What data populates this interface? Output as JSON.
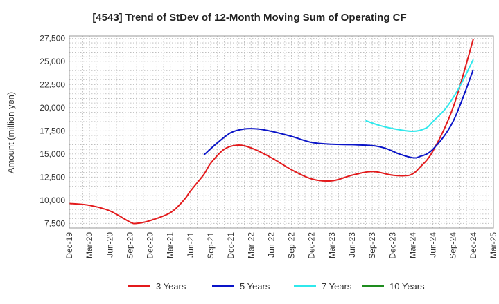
{
  "chart_data": {
    "type": "line",
    "title": "[4543]  Trend of StDev of 12-Month Moving Sum of Operating CF",
    "xlabel": "",
    "ylabel": "Amount (million yen)",
    "ylim": [
      7000,
      27750
    ],
    "yticks": [
      7500,
      10000,
      12500,
      15000,
      17500,
      20000,
      22500,
      25000,
      27500
    ],
    "ytick_labels": [
      "7,500",
      "10,000",
      "12,500",
      "15,000",
      "17,500",
      "20,000",
      "22,500",
      "25,000",
      "27,500"
    ],
    "x_categories": [
      "Dec-19",
      "Mar-20",
      "Jun-20",
      "Sep-20",
      "Dec-20",
      "Mar-21",
      "Jun-21",
      "Sep-21",
      "Dec-21",
      "Mar-22",
      "Jun-22",
      "Sep-22",
      "Dec-22",
      "Mar-23",
      "Jun-23",
      "Sep-23",
      "Dec-23",
      "Mar-24",
      "Jun-24",
      "Sep-24",
      "Dec-24",
      "Mar-25"
    ],
    "grid": true,
    "legend_position": "bottom",
    "series": [
      {
        "name": "3 Years",
        "color": "#e31a1c",
        "points": [
          [
            "Dec-19",
            9650
          ],
          [
            "Mar-20",
            9450
          ],
          [
            "Jun-20",
            8850
          ],
          [
            "Sep-20",
            7650
          ],
          [
            "Oct-20",
            7500
          ],
          [
            "Dec-20",
            7800
          ],
          [
            "Mar-21",
            8650
          ],
          [
            "May-21",
            10000
          ],
          [
            "Jun-21",
            11000
          ],
          [
            "Aug-21",
            12800
          ],
          [
            "Sep-21",
            14000
          ],
          [
            "Nov-21",
            15500
          ],
          [
            "Jan-22",
            15950
          ],
          [
            "Mar-22",
            15650
          ],
          [
            "Jun-22",
            14600
          ],
          [
            "Sep-22",
            13300
          ],
          [
            "Dec-22",
            12300
          ],
          [
            "Mar-23",
            12100
          ],
          [
            "Jun-23",
            12700
          ],
          [
            "Sep-23",
            13100
          ],
          [
            "Dec-23",
            12700
          ],
          [
            "Feb-24",
            12650
          ],
          [
            "Mar-24",
            12850
          ],
          [
            "Apr-24",
            13500
          ],
          [
            "Jun-24",
            15300
          ],
          [
            "Sep-24",
            20000
          ],
          [
            "Dec-24",
            27400
          ]
        ]
      },
      {
        "name": "5 Years",
        "color": "#0a14c8",
        "points": [
          [
            "Aug-21",
            14900
          ],
          [
            "Oct-21",
            16200
          ],
          [
            "Dec-21",
            17300
          ],
          [
            "Feb-22",
            17700
          ],
          [
            "Apr-22",
            17700
          ],
          [
            "Jun-22",
            17450
          ],
          [
            "Sep-22",
            16900
          ],
          [
            "Dec-22",
            16250
          ],
          [
            "Mar-23",
            16050
          ],
          [
            "Jun-23",
            16000
          ],
          [
            "Sep-23",
            15900
          ],
          [
            "Nov-23",
            15600
          ],
          [
            "Jan-24",
            15000
          ],
          [
            "Mar-24",
            14600
          ],
          [
            "Apr-24",
            14700
          ],
          [
            "Jun-24",
            15500
          ],
          [
            "Sep-24",
            18500
          ],
          [
            "Dec-24",
            24100
          ]
        ]
      },
      {
        "name": "7 Years",
        "color": "#2fe8ec",
        "points": [
          [
            "Aug-23",
            18600
          ],
          [
            "Oct-23",
            18100
          ],
          [
            "Dec-23",
            17750
          ],
          [
            "Mar-24",
            17450
          ],
          [
            "May-24",
            17800
          ],
          [
            "Jun-24",
            18500
          ],
          [
            "Aug-24",
            20000
          ],
          [
            "Oct-24",
            22300
          ],
          [
            "Dec-24",
            25200
          ]
        ]
      },
      {
        "name": "10 Years",
        "color": "#1e8c1e",
        "points": []
      }
    ]
  }
}
